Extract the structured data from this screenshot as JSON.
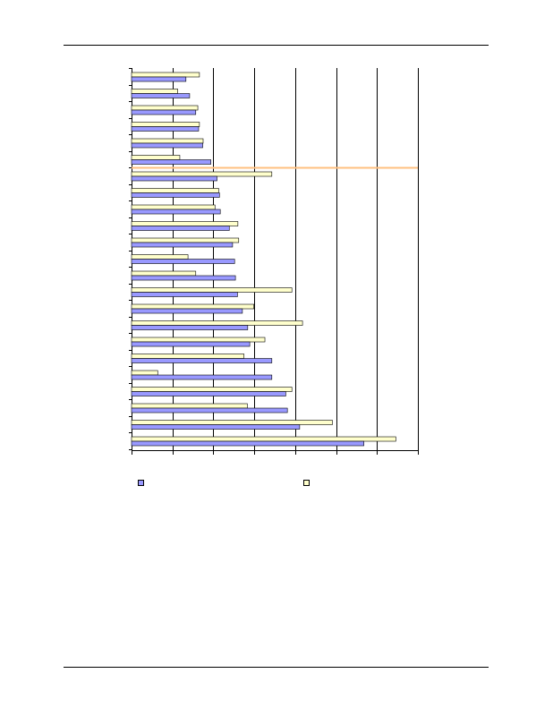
{
  "colors": {
    "series_blue": "#9999ff",
    "series_yellow": "#ffffcc",
    "divider_line": "#ffc080",
    "grid": "#000000"
  },
  "chart_data": {
    "type": "bar",
    "orientation": "horizontal",
    "title": "",
    "xlabel": "",
    "ylabel": "",
    "xlim": [
      0,
      7
    ],
    "grid": true,
    "legend_position": "bottom",
    "categories": [
      "",
      "",
      "",
      "",
      "",
      "",
      "",
      "",
      "",
      "",
      "",
      "",
      "",
      "",
      "",
      "",
      "",
      "",
      "",
      "",
      "",
      "",
      ""
    ],
    "series": [
      {
        "color": "#9999ff",
        "values": [
          1.33,
          1.42,
          1.57,
          1.64,
          1.74,
          1.94,
          2.09,
          2.15,
          2.17,
          2.39,
          2.47,
          2.52,
          2.54,
          2.59,
          2.71,
          2.84,
          2.89,
          3.43,
          3.43,
          3.77,
          3.81,
          4.11,
          5.68
        ]
      },
      {
        "color": "#ffffcc",
        "values": [
          1.66,
          1.13,
          1.62,
          1.66,
          1.75,
          1.18,
          3.43,
          2.13,
          2.04,
          2.6,
          2.62,
          1.38,
          1.57,
          3.92,
          2.99,
          4.18,
          3.26,
          2.75,
          0.64,
          3.92,
          2.83,
          4.91,
          6.46
        ]
      }
    ],
    "divider_after_index": 5
  }
}
